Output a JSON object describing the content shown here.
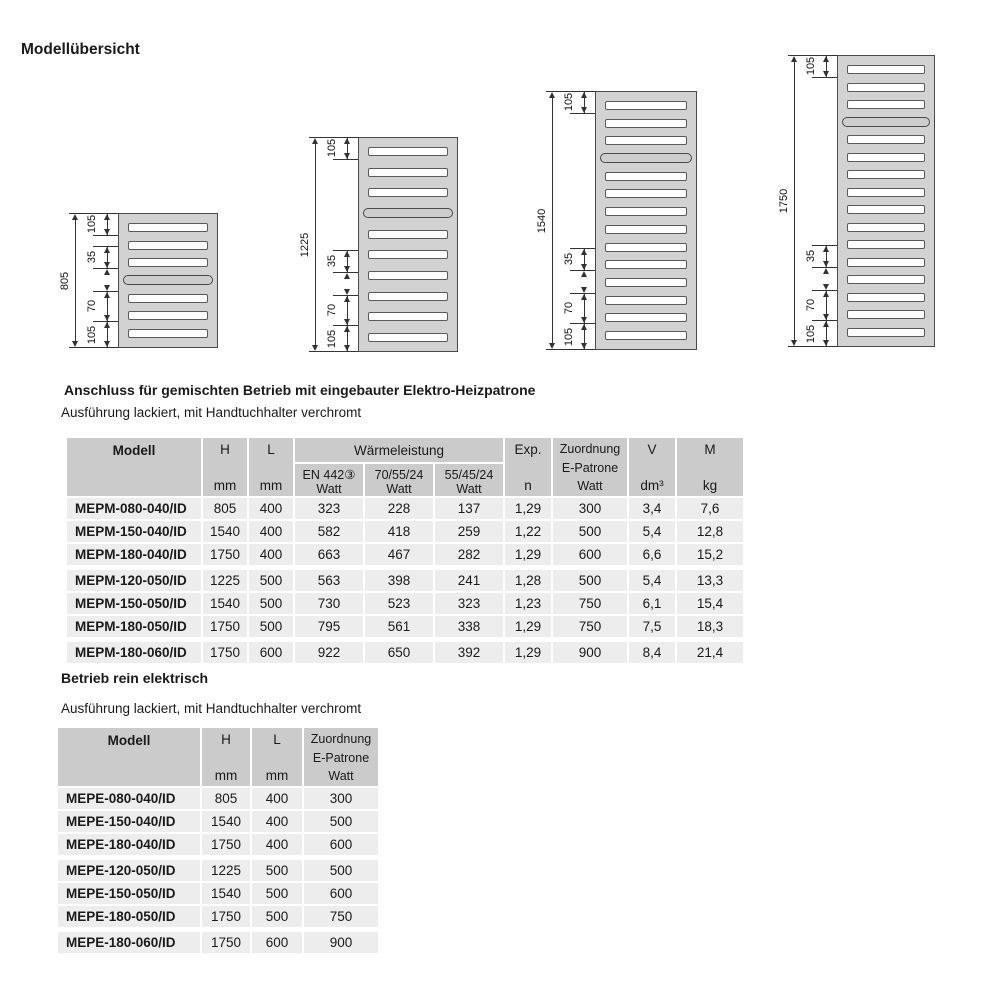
{
  "page": {
    "title": "Modellübersicht"
  },
  "diagrams": [
    {
      "name": "radiator-805",
      "total": "805",
      "top_dim": "105",
      "bottom_dims": [
        "35",
        "70",
        "105"
      ],
      "slats_above_bar": 3,
      "slats_below_bar": 3
    },
    {
      "name": "radiator-1225",
      "total": "1225",
      "top_dim": "105",
      "bottom_dims": [
        "35",
        "70",
        "105"
      ],
      "slats_above_bar": 3,
      "slats_below_bar": 6
    },
    {
      "name": "radiator-1540",
      "total": "1540",
      "top_dim": "105",
      "bottom_dims": [
        "35",
        "70",
        "105"
      ],
      "slats_above_bar": 3,
      "slats_below_bar": 10
    },
    {
      "name": "radiator-1750",
      "total": "1750",
      "top_dim": "105",
      "bottom_dims": [
        "35",
        "70",
        "105"
      ],
      "slats_above_bar": 3,
      "slats_below_bar": 12
    }
  ],
  "section_mixed": {
    "heading": "Anschluss für gemischten Betrieb mit eingebauter Elektro-Heizpatrone",
    "subtitle": "Ausführung lackiert, mit Handtuchhalter verchromt",
    "table": {
      "header": {
        "modell": "Modell",
        "h": "H",
        "l": "L",
        "mm": "mm",
        "waermeleistung": "Wärmeleistung",
        "sub1_line1": "EN 442③",
        "sub1_line2": "Watt",
        "sub2_line1": "70/55/24",
        "sub2_line2": "Watt",
        "sub3_line1": "55/45/24",
        "sub3_line2": "Watt",
        "exp_line1": "Exp.",
        "exp_line2": "n",
        "zuordnung_line1": "Zuordnung",
        "zuordnung_line2": "E-Patrone",
        "zuordnung_line3": "Watt",
        "v_line1": "V",
        "v_line2": "dm³",
        "m_line1": "M",
        "m_line2": "kg"
      },
      "rows": [
        {
          "model": "MEPM-080-040/ID",
          "h": "805",
          "l": "400",
          "en442": "323",
          "w705524": "228",
          "w554524": "137",
          "exp": "1,29",
          "epatrone": "300",
          "v": "3,4",
          "m": "7,6",
          "group_start": false
        },
        {
          "model": "MEPM-150-040/ID",
          "h": "1540",
          "l": "400",
          "en442": "582",
          "w705524": "418",
          "w554524": "259",
          "exp": "1,22",
          "epatrone": "500",
          "v": "5,4",
          "m": "12,8",
          "group_start": false
        },
        {
          "model": "MEPM-180-040/ID",
          "h": "1750",
          "l": "400",
          "en442": "663",
          "w705524": "467",
          "w554524": "282",
          "exp": "1,29",
          "epatrone": "600",
          "v": "6,6",
          "m": "15,2",
          "group_start": false
        },
        {
          "model": "MEPM-120-050/ID",
          "h": "1225",
          "l": "500",
          "en442": "563",
          "w705524": "398",
          "w554524": "241",
          "exp": "1,28",
          "epatrone": "500",
          "v": "5,4",
          "m": "13,3",
          "group_start": true
        },
        {
          "model": "MEPM-150-050/ID",
          "h": "1540",
          "l": "500",
          "en442": "730",
          "w705524": "523",
          "w554524": "323",
          "exp": "1,23",
          "epatrone": "750",
          "v": "6,1",
          "m": "15,4",
          "group_start": false
        },
        {
          "model": "MEPM-180-050/ID",
          "h": "1750",
          "l": "500",
          "en442": "795",
          "w705524": "561",
          "w554524": "338",
          "exp": "1,29",
          "epatrone": "750",
          "v": "7,5",
          "m": "18,3",
          "group_start": false
        },
        {
          "model": "MEPM-180-060/ID",
          "h": "1750",
          "l": "600",
          "en442": "922",
          "w705524": "650",
          "w554524": "392",
          "exp": "1,29",
          "epatrone": "900",
          "v": "8,4",
          "m": "21,4",
          "group_start": true
        }
      ]
    }
  },
  "section_electric": {
    "heading": "Betrieb rein elektrisch",
    "subtitle": "Ausführung lackiert, mit Handtuchhalter verchromt",
    "table": {
      "header": {
        "modell": "Modell",
        "h": "H",
        "l": "L",
        "mm": "mm",
        "zuordnung_line1": "Zuordnung",
        "zuordnung_line2": "E-Patrone",
        "zuordnung_line3": "Watt"
      },
      "rows": [
        {
          "model": "MEPE-080-040/ID",
          "h": "805",
          "l": "400",
          "epatrone": "300",
          "group_start": false
        },
        {
          "model": "MEPE-150-040/ID",
          "h": "1540",
          "l": "400",
          "epatrone": "500",
          "group_start": false
        },
        {
          "model": "MEPE-180-040/ID",
          "h": "1750",
          "l": "400",
          "epatrone": "600",
          "group_start": false
        },
        {
          "model": "MEPE-120-050/ID",
          "h": "1225",
          "l": "500",
          "epatrone": "500",
          "group_start": true
        },
        {
          "model": "MEPE-150-050/ID",
          "h": "1540",
          "l": "500",
          "epatrone": "600",
          "group_start": false
        },
        {
          "model": "MEPE-180-050/ID",
          "h": "1750",
          "l": "500",
          "epatrone": "750",
          "group_start": false
        },
        {
          "model": "MEPE-180-060/ID",
          "h": "1750",
          "l": "600",
          "epatrone": "900",
          "group_start": true
        }
      ]
    }
  }
}
